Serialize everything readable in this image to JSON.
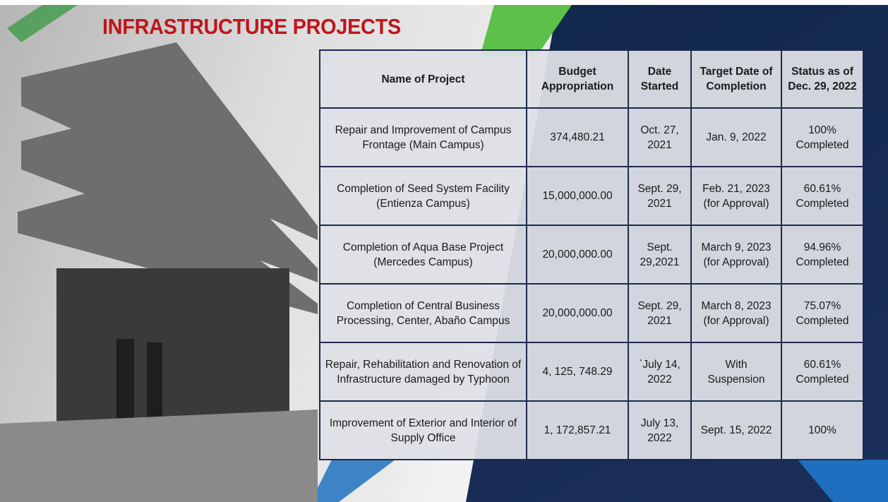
{
  "header": {
    "title": "INFRASTRUCTURE PROJECTS"
  },
  "table": {
    "headers": [
      "Name of Project",
      "Budget Appropriation",
      "Date Started",
      "Target Date of Completion",
      "Status as of Dec. 29, 2022"
    ],
    "rows": [
      [
        "Repair and Improvement of Campus Frontage (Main Campus)",
        "374,480.21",
        "Oct. 27, 2021",
        "Jan. 9, 2022",
        "100% Completed"
      ],
      [
        "Completion of Seed System Facility (Entienza Campus)",
        "15,000,000.00",
        "Sept. 29, 2021",
        "Feb. 21, 2023 (for Approval)",
        "60.61% Completed"
      ],
      [
        "Completion of Aqua Base Project (Mercedes Campus)",
        "20,000,000.00",
        "Sept. 29,2021",
        "March 9, 2023 (for Approval)",
        "94.96% Completed"
      ],
      [
        "Completion of Central Business Processing, Center, Abaño Campus",
        "20,000,000.00",
        "Sept. 29, 2021",
        "March 8, 2023 (for Approval)",
        "75.07% Completed"
      ],
      [
        "Repair, Rehabilitation and Renovation of Infrastructure damaged by Typhoon",
        "4, 125, 748.29",
        "`July 14, 2022",
        "With Suspension",
        "60.61% Completed"
      ],
      [
        "Improvement of Exterior and Interior of Supply Office",
        "1, 172,857.21",
        "July 13, 2022",
        "Sept. 15, 2022",
        "100%"
      ]
    ]
  }
}
